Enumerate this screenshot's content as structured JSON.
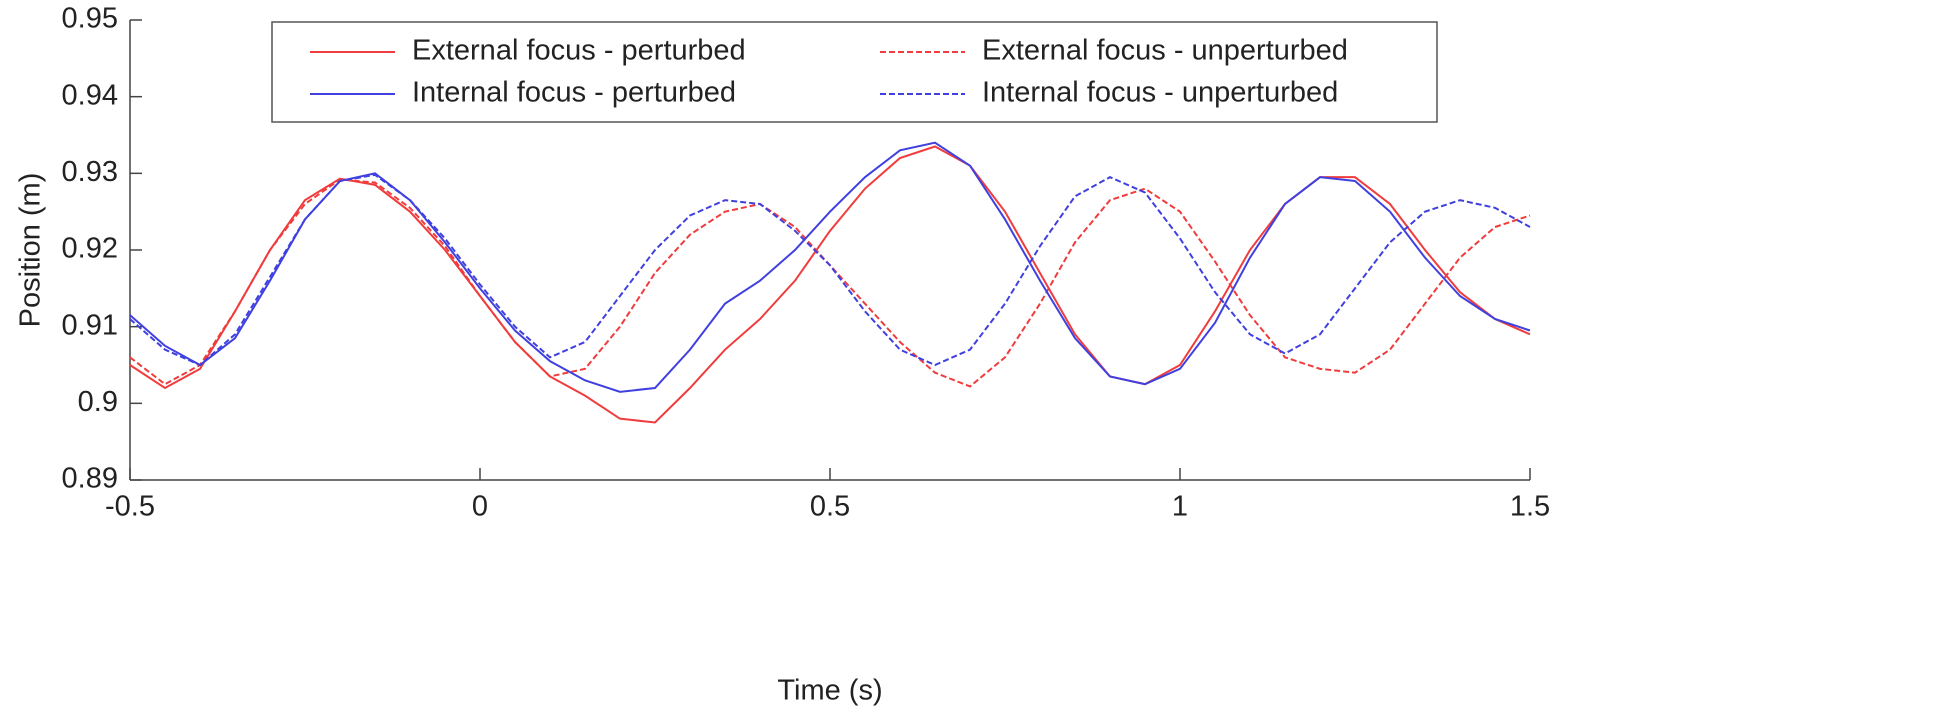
{
  "chart_data": {
    "type": "line",
    "x_label": "Time (s)",
    "y_label": "Position (m)",
    "x": [
      -0.5,
      -0.45,
      -0.4,
      -0.35,
      -0.3,
      -0.25,
      -0.2,
      -0.15,
      -0.1,
      -0.05,
      0,
      0.05,
      0.1,
      0.15,
      0.2,
      0.25,
      0.3,
      0.35,
      0.4,
      0.45,
      0.5,
      0.55,
      0.6,
      0.65,
      0.7,
      0.75,
      0.8,
      0.85,
      0.9,
      0.95,
      1.0,
      1.05,
      1.1,
      1.15,
      1.2,
      1.25,
      1.3,
      1.35,
      1.4,
      1.45,
      1.5
    ],
    "series": [
      {
        "name": "External focus - perturbed",
        "color": "#f03c3c",
        "linestyle": "solid",
        "values": [
          0.905,
          0.902,
          0.9045,
          0.912,
          0.92,
          0.9265,
          0.9293,
          0.9285,
          0.925,
          0.92,
          0.914,
          0.908,
          0.9035,
          0.901,
          0.898,
          0.8975,
          0.902,
          0.907,
          0.911,
          0.916,
          0.9225,
          0.928,
          0.932,
          0.9335,
          0.931,
          0.925,
          0.917,
          0.909,
          0.9035,
          0.9025,
          0.905,
          0.912,
          0.92,
          0.926,
          0.9295,
          0.9295,
          0.926,
          0.92,
          0.9145,
          0.911,
          0.909
        ]
      },
      {
        "name": "External focus - unperturbed",
        "color": "#f03c3c",
        "linestyle": "dashed",
        "values": [
          0.906,
          0.9025,
          0.905,
          0.912,
          0.92,
          0.926,
          0.9292,
          0.9288,
          0.9255,
          0.9205,
          0.914,
          0.908,
          0.9035,
          0.9045,
          0.91,
          0.917,
          0.922,
          0.925,
          0.926,
          0.923,
          0.918,
          0.913,
          0.908,
          0.904,
          0.9022,
          0.906,
          0.913,
          0.921,
          0.9265,
          0.928,
          0.925,
          0.9185,
          0.9115,
          0.906,
          0.9045,
          0.904,
          0.907,
          0.913,
          0.919,
          0.923,
          0.9245
        ]
      },
      {
        "name": "Internal focus - perturbed",
        "color": "#4040e0",
        "linestyle": "solid",
        "values": [
          0.9115,
          0.9075,
          0.905,
          0.9085,
          0.916,
          0.924,
          0.929,
          0.93,
          0.9265,
          0.921,
          0.915,
          0.9095,
          0.9055,
          0.903,
          0.9015,
          0.902,
          0.907,
          0.913,
          0.916,
          0.92,
          0.925,
          0.9295,
          0.933,
          0.934,
          0.931,
          0.924,
          0.916,
          0.9085,
          0.9035,
          0.9025,
          0.9045,
          0.9105,
          0.919,
          0.926,
          0.9295,
          0.929,
          0.925,
          0.919,
          0.914,
          0.911,
          0.9095
        ]
      },
      {
        "name": "Internal focus - unperturbed",
        "color": "#4040e0",
        "linestyle": "dashed",
        "values": [
          0.911,
          0.907,
          0.905,
          0.909,
          0.9165,
          0.924,
          0.929,
          0.9298,
          0.9265,
          0.9215,
          0.9155,
          0.91,
          0.906,
          0.908,
          0.914,
          0.92,
          0.9245,
          0.9265,
          0.926,
          0.9225,
          0.918,
          0.912,
          0.907,
          0.905,
          0.907,
          0.913,
          0.9205,
          0.927,
          0.9295,
          0.9275,
          0.9215,
          0.9145,
          0.909,
          0.9065,
          0.909,
          0.915,
          0.921,
          0.925,
          0.9265,
          0.9255,
          0.923
        ]
      }
    ],
    "xlim": [
      -0.5,
      1.5
    ],
    "xticks": [
      -0.5,
      0,
      0.5,
      1,
      1.5
    ],
    "ylim": [
      0.89,
      0.95
    ],
    "yticks": [
      0.89,
      0.9,
      0.91,
      0.92,
      0.93,
      0.94,
      0.95
    ],
    "legend": "upper center",
    "legend_columns": 2
  }
}
